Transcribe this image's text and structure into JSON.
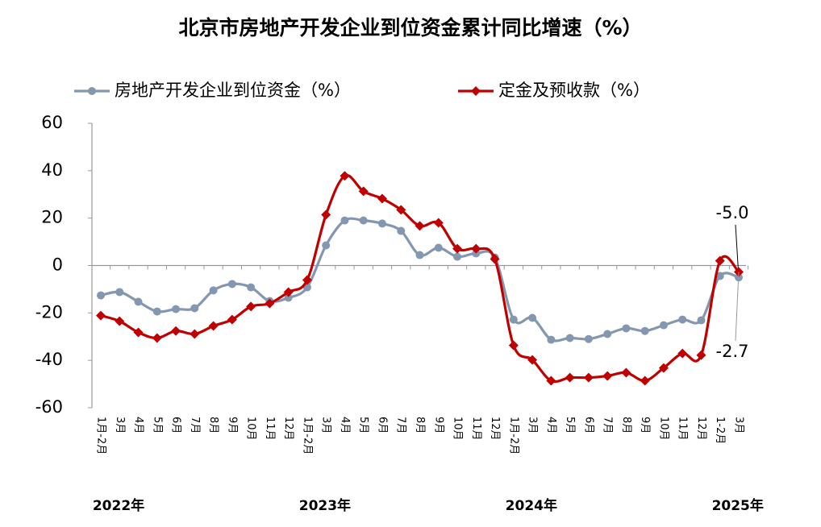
{
  "chart_data": {
    "type": "line",
    "title": "北京市房地产开发企业到位资金累计同比增速（%）",
    "categories": [
      "1月-2月",
      "3月",
      "4月",
      "5月",
      "6月",
      "7月",
      "8月",
      "9月",
      "10月",
      "11月",
      "12月",
      "1月-2月",
      "3月",
      "4月",
      "5月",
      "6月",
      "7月",
      "8月",
      "9月",
      "10月",
      "11月",
      "12月",
      "1月-2月",
      "3月",
      "4月",
      "5月",
      "6月",
      "7月",
      "8月",
      "9月",
      "10月",
      "11月",
      "12月",
      "1-2月",
      "3月"
    ],
    "year_labels": [
      "2022年",
      "2023年",
      "2024年",
      "2025年"
    ],
    "series": [
      {
        "name": "房地产开发企业到位资金（%）",
        "color": "#8497b0",
        "marker": "circle",
        "values": [
          -12.6,
          -11.2,
          -15.3,
          -19.4,
          -18.4,
          -18,
          -10.5,
          -7.8,
          -9.2,
          -15,
          -13.6,
          -9.2,
          8.5,
          19,
          19,
          17.7,
          14.6,
          4.4,
          7.5,
          3.7,
          5.1,
          3.4,
          -22.8,
          -22.1,
          -31.3,
          -30.6,
          -31,
          -28.9,
          -26.5,
          -27.6,
          -25.2,
          -22.8,
          -23.1,
          -4.4,
          -5.0
        ],
        "value_labels": [
          null,
          null,
          null,
          null,
          null,
          null,
          null,
          null,
          null,
          null,
          null,
          null,
          null,
          null,
          null,
          null,
          null,
          null,
          null,
          null,
          null,
          null,
          null,
          null,
          null,
          null,
          null,
          null,
          null,
          null,
          null,
          null,
          null,
          null,
          "-5.0"
        ]
      },
      {
        "name": "定金及预收款（%）",
        "color": "#c00000",
        "marker": "diamond",
        "values": [
          -21.1,
          -23.5,
          -28.2,
          -30.6,
          -27.6,
          -28.9,
          -25.5,
          -22.8,
          -17.3,
          -16,
          -11.2,
          -6.1,
          21.4,
          37.8,
          31.3,
          28.2,
          23.5,
          16.7,
          18,
          7.1,
          7.1,
          2.7,
          -33.7,
          -39.8,
          -48.6,
          -47.3,
          -47.3,
          -46.6,
          -45.2,
          -48.6,
          -43.2,
          -37.1,
          -37.8,
          2.0,
          -2.7
        ],
        "value_labels": [
          null,
          null,
          null,
          null,
          null,
          null,
          null,
          null,
          null,
          null,
          null,
          null,
          null,
          null,
          null,
          null,
          null,
          null,
          null,
          null,
          null,
          null,
          null,
          null,
          null,
          null,
          null,
          null,
          null,
          null,
          null,
          null,
          null,
          null,
          "-2.7"
        ]
      }
    ],
    "ylim": [
      -60,
      60
    ],
    "yticks": [
      -60,
      -40,
      -20,
      0,
      20,
      40,
      60
    ],
    "grid": false
  }
}
